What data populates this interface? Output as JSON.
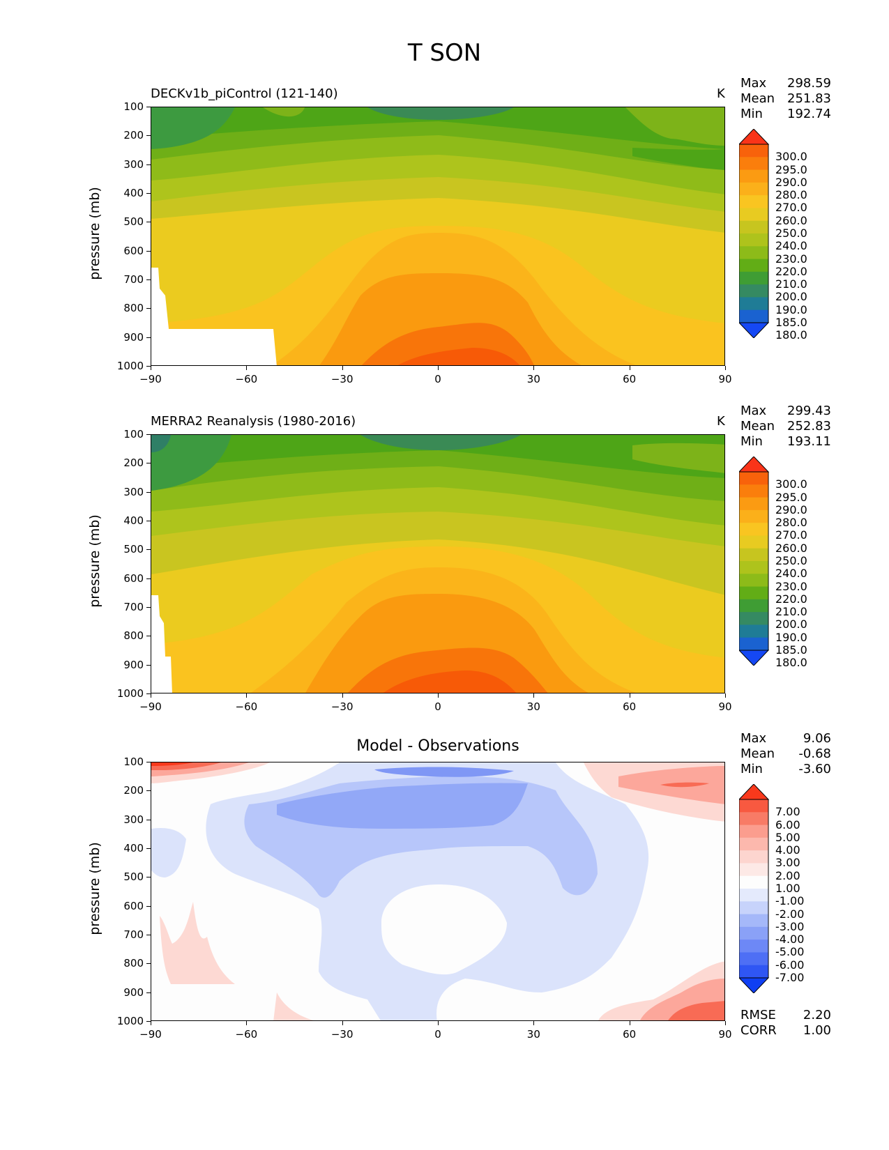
{
  "figure": {
    "title": "T SON"
  },
  "panels": [
    {
      "title": "DECKv1b_piControl (121-140)",
      "units": "K",
      "ylabel": "pressure (mb)",
      "stats": [
        [
          "Max",
          "298.59"
        ],
        [
          "Mean",
          "251.83"
        ],
        [
          "Min",
          "192.74"
        ]
      ],
      "colorbar": [
        "300.0",
        "295.0",
        "290.0",
        "280.0",
        "270.0",
        "260.0",
        "250.0",
        "240.0",
        "230.0",
        "220.0",
        "210.0",
        "200.0",
        "190.0",
        "185.0",
        "180.0"
      ]
    },
    {
      "title": "MERRA2 Reanalysis (1980-2016)",
      "units": "K",
      "ylabel": "pressure (mb)",
      "stats": [
        [
          "Max",
          "299.43"
        ],
        [
          "Mean",
          "252.83"
        ],
        [
          "Min",
          "193.11"
        ]
      ],
      "colorbar": [
        "300.0",
        "295.0",
        "290.0",
        "280.0",
        "270.0",
        "260.0",
        "250.0",
        "240.0",
        "230.0",
        "220.0",
        "210.0",
        "200.0",
        "190.0",
        "185.0",
        "180.0"
      ]
    },
    {
      "title": "Model - Observations",
      "units": "",
      "ylabel": "pressure (mb)",
      "stats": [
        [
          "Max",
          "9.06"
        ],
        [
          "Mean",
          "-0.68"
        ],
        [
          "Min",
          "-3.60"
        ]
      ],
      "colorbar": [
        "7.00",
        "6.00",
        "5.00",
        "4.00",
        "3.00",
        "2.00",
        "1.00",
        "-1.00",
        "-2.00",
        "-3.00",
        "-4.00",
        "-5.00",
        "-6.00",
        "-7.00"
      ],
      "extra_stats": [
        [
          "RMSE",
          "2.20"
        ],
        [
          "CORR",
          "1.00"
        ]
      ]
    }
  ],
  "axes": {
    "x_ticks": [
      "−90",
      "−60",
      "−30",
      "0",
      "30",
      "60",
      "90"
    ],
    "y_ticks": [
      "100",
      "200",
      "300",
      "400",
      "500",
      "600",
      "700",
      "800",
      "900",
      "1000"
    ]
  },
  "chart_data": [
    {
      "type": "heatmap",
      "title": "DECKv1b_piControl (121-140)",
      "ylabel": "pressure (mb)",
      "xlim": [
        -90,
        90
      ],
      "ylim": [
        1000,
        100
      ],
      "units": "K",
      "levels": [
        180,
        185,
        190,
        200,
        210,
        220,
        230,
        240,
        250,
        260,
        270,
        280,
        290,
        295,
        300
      ],
      "max": 298.59,
      "mean": 251.83,
      "min": 192.74
    },
    {
      "type": "heatmap",
      "title": "MERRA2 Reanalysis (1980-2016)",
      "ylabel": "pressure (mb)",
      "xlim": [
        -90,
        90
      ],
      "ylim": [
        1000,
        100
      ],
      "units": "K",
      "levels": [
        180,
        185,
        190,
        200,
        210,
        220,
        230,
        240,
        250,
        260,
        270,
        280,
        290,
        295,
        300
      ],
      "max": 299.43,
      "mean": 252.83,
      "min": 193.11
    },
    {
      "type": "heatmap",
      "title": "Model - Observations",
      "ylabel": "pressure (mb)",
      "xlim": [
        -90,
        90
      ],
      "ylim": [
        1000,
        100
      ],
      "levels": [
        -7,
        -6,
        -5,
        -4,
        -3,
        -2,
        -1,
        1,
        2,
        3,
        4,
        5,
        6,
        7
      ],
      "max": 9.06,
      "mean": -0.68,
      "min": -3.6,
      "rmse": 2.2,
      "corr": 1.0
    }
  ]
}
